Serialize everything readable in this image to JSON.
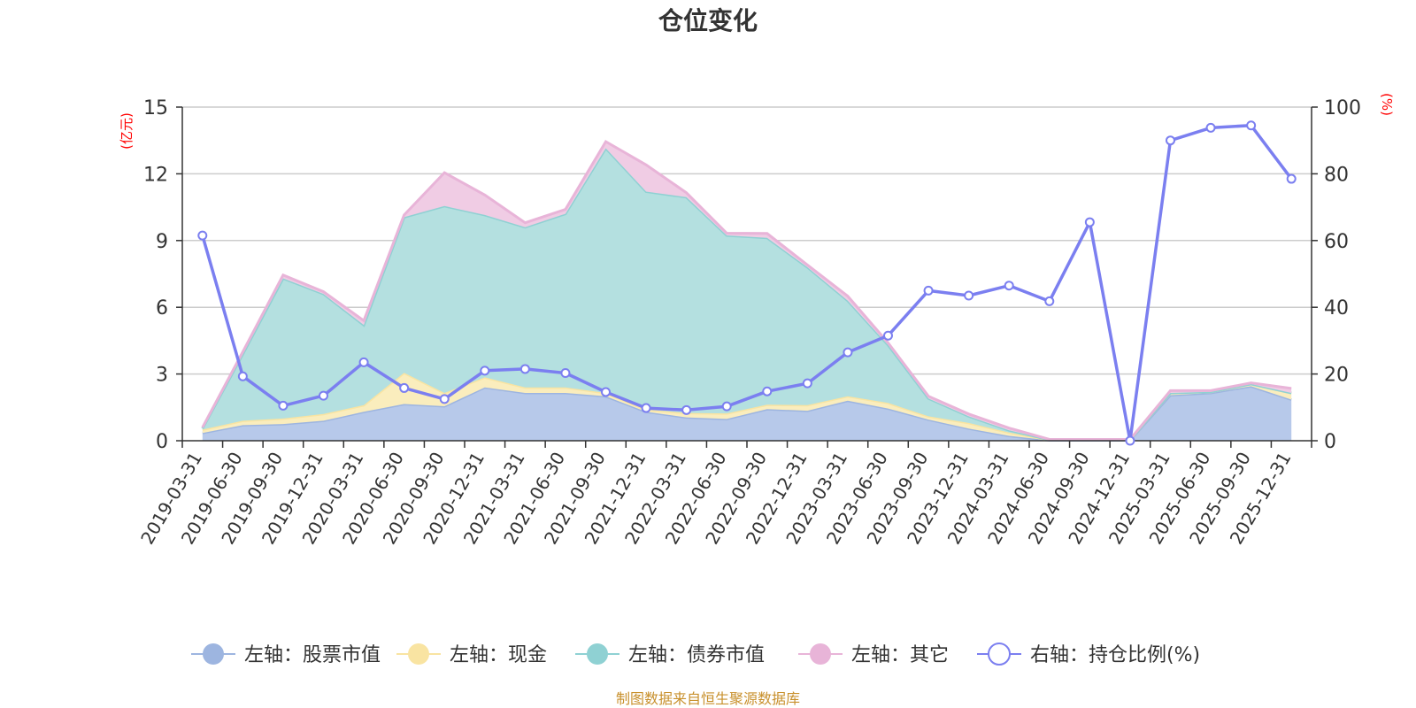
{
  "chart_data": {
    "type": "area",
    "title": "仓位变化",
    "source_note": "制图数据来自恒生聚源数据库",
    "left_axis": {
      "unit": "(亿元)",
      "min": 0,
      "max": 15,
      "ticks": [
        0,
        3,
        6,
        9,
        12,
        15
      ]
    },
    "right_axis": {
      "unit": "(%)",
      "min": 0,
      "max": 100,
      "ticks": [
        0,
        20,
        40,
        60,
        80,
        100
      ]
    },
    "categories": [
      "2019-03-31",
      "2019-06-30",
      "2019-09-30",
      "2019-12-31",
      "2020-03-31",
      "2020-06-30",
      "2020-09-30",
      "2020-12-31",
      "2021-03-31",
      "2021-06-30",
      "2021-09-30",
      "2021-12-31",
      "2022-03-31",
      "2022-06-30",
      "2022-09-30",
      "2022-12-31",
      "2023-03-31",
      "2023-06-30",
      "2023-09-30",
      "2023-12-31",
      "2024-03-31",
      "2024-06-30",
      "2024-09-30",
      "2024-12-31",
      "2025-03-31",
      "2025-06-30",
      "2025-09-30",
      "2025-12-31"
    ],
    "series": [
      {
        "name": "左轴：股票市值",
        "axis": "left",
        "stack": true,
        "color": "#9db5e0",
        "fill": "#b7c9ea",
        "values": [
          0.35,
          0.7,
          0.75,
          0.9,
          1.3,
          1.65,
          1.55,
          2.4,
          2.15,
          2.15,
          2.0,
          1.3,
          1.05,
          0.98,
          1.42,
          1.35,
          1.8,
          1.45,
          0.95,
          0.55,
          0.22,
          0.02,
          0.02,
          0.02,
          2.05,
          2.15,
          2.45,
          1.85
        ]
      },
      {
        "name": "左轴：现金",
        "axis": "left",
        "stack": true,
        "color": "#f9e4a2",
        "fill": "#faedbd",
        "values": [
          0.15,
          0.2,
          0.25,
          0.3,
          0.3,
          1.4,
          0.6,
          0.45,
          0.25,
          0.25,
          0.15,
          0.1,
          0.2,
          0.25,
          0.2,
          0.25,
          0.2,
          0.25,
          0.15,
          0.25,
          0.15,
          0.02,
          0.02,
          0.02,
          0.1,
          0.05,
          0.1,
          0.3
        ]
      },
      {
        "name": "左轴：债券市值",
        "axis": "left",
        "stack": true,
        "color": "#8fd1d3",
        "fill": "#b4e0e0",
        "values": [
          0.05,
          3.0,
          6.3,
          5.4,
          3.6,
          7.0,
          8.4,
          7.3,
          7.2,
          7.8,
          11.0,
          9.8,
          9.7,
          8.0,
          7.5,
          6.2,
          4.3,
          2.6,
          0.8,
          0.3,
          0.1,
          0.0,
          0.0,
          0.0,
          0.0,
          0.0,
          0.0,
          0.0
        ]
      },
      {
        "name": "左轴：其它",
        "axis": "left",
        "stack": true,
        "color": "#e8b4d8",
        "fill": "#f0cce4",
        "values": [
          0.05,
          0.1,
          0.15,
          0.1,
          0.2,
          0.1,
          1.5,
          0.9,
          0.2,
          0.2,
          0.3,
          1.2,
          0.2,
          0.1,
          0.2,
          0.1,
          0.2,
          0.1,
          0.1,
          0.1,
          0.1,
          0.02,
          0.02,
          0.02,
          0.1,
          0.05,
          0.05,
          0.2
        ]
      },
      {
        "name": "右轴：持仓比例(%)",
        "axis": "right",
        "type": "line",
        "color": "#7b7ff0",
        "values": [
          61.5,
          19.3,
          10.5,
          13.5,
          23.5,
          15.8,
          12.5,
          21.0,
          21.5,
          20.3,
          14.6,
          9.8,
          9.2,
          10.3,
          14.8,
          17.2,
          26.5,
          31.5,
          45.0,
          43.5,
          46.5,
          41.8,
          65.5,
          0.0,
          90.0,
          93.8,
          94.5,
          78.5
        ]
      }
    ],
    "legend_position": "bottom-center",
    "grid": true
  }
}
